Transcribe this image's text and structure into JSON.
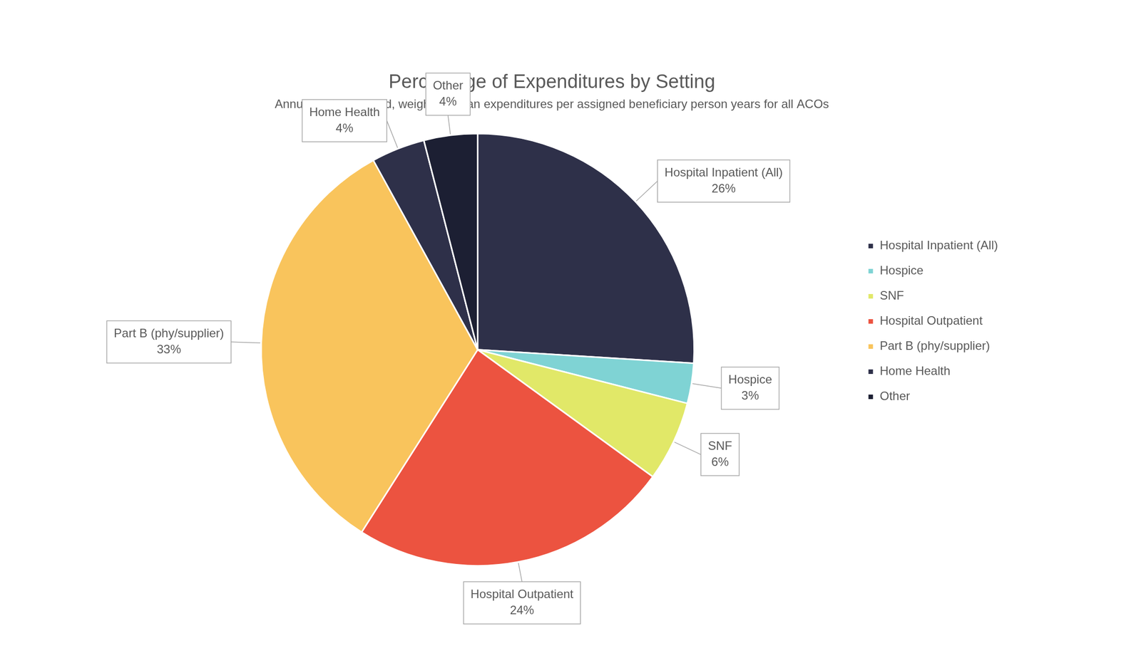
{
  "chart_data": {
    "type": "pie",
    "title": "Percentage of Expenditures by Setting",
    "subtitle": "Annualized, truncated, weighted mean expenditures per assigned beneficiary person years for all ACOs",
    "categories": [
      "Hospital Inpatient (All)",
      "Hospice",
      "SNF",
      "Hospital Outpatient",
      "Part B (phy/supplier)",
      "Home Health",
      "Other"
    ],
    "values": [
      26,
      3,
      6,
      24,
      33,
      4,
      4
    ],
    "value_labels": [
      "26%",
      "3%",
      "6%",
      "24%",
      "33%",
      "4%",
      "4%"
    ],
    "colors": [
      "#2e3049",
      "#7fd3d4",
      "#e1e868",
      "#ec5340",
      "#f9c45c",
      "#2e3049",
      "#1c1f33"
    ],
    "legend": "right",
    "data_labels": true
  }
}
